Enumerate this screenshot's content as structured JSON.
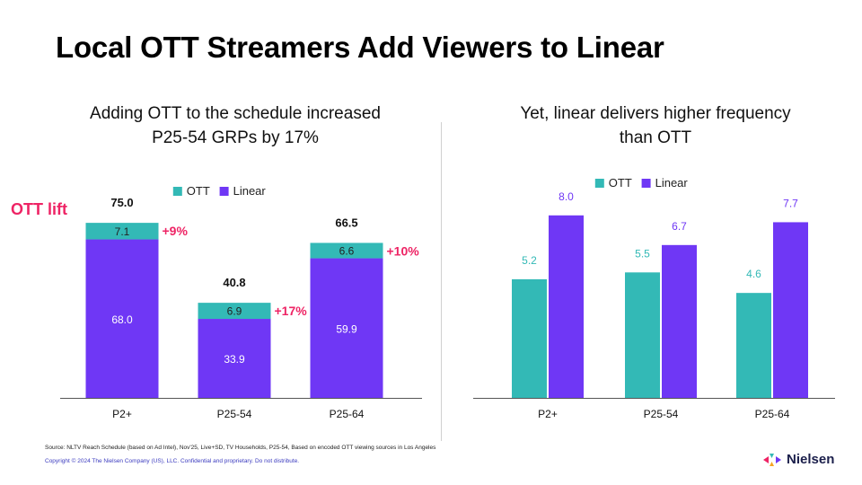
{
  "page": {
    "title": "Local OTT Streamers Add Viewers to Linear",
    "ott_lift_label": "OTT lift",
    "source": "Source: NLTV Reach Schedule (based on Ad Intel), Nov'25, Live+SD, TV Households, P25-54, Based on encoded OTT viewing sources in Los Angeles",
    "copyright": "Copyright © 2024 The Nielsen Company (US), LLC. Confidential and proprietary. Do not distribute.",
    "logo_text": "Nielsen"
  },
  "colors": {
    "ott": "#33b9b6",
    "linear": "#6f37f5",
    "lift": "#ee2465",
    "axis": "#555555"
  },
  "chart_data": [
    {
      "type": "bar",
      "stacked": true,
      "title": "Adding OTT to the schedule increased P25-54 GRPs by 17%",
      "title_lines": [
        "Adding OTT to the schedule increased",
        "P25-54 GRPs by 17%"
      ],
      "categories": [
        "P2+",
        "P25-54",
        "P25-64"
      ],
      "series": [
        {
          "name": "Linear",
          "values": [
            68.0,
            33.9,
            59.9
          ]
        },
        {
          "name": "OTT",
          "values": [
            7.1,
            6.9,
            6.6
          ]
        }
      ],
      "totals": [
        75.0,
        40.8,
        66.5
      ],
      "lift_labels": [
        "+9%",
        "+17%",
        "+10%"
      ],
      "legend": [
        "OTT",
        "Linear"
      ],
      "legend_position": "top",
      "xlabel": "",
      "ylabel": "",
      "ylim": [
        0,
        80
      ],
      "grid": false
    },
    {
      "type": "bar",
      "stacked": false,
      "title": "Yet, linear delivers higher frequency than OTT",
      "title_lines": [
        "Yet, linear delivers higher frequency",
        "than OTT"
      ],
      "categories": [
        "P2+",
        "P25-54",
        "P25-64"
      ],
      "series": [
        {
          "name": "OTT",
          "values": [
            5.2,
            5.5,
            4.6
          ]
        },
        {
          "name": "Linear",
          "values": [
            8.0,
            6.7,
            7.7
          ]
        }
      ],
      "legend": [
        "OTT",
        "Linear"
      ],
      "legend_position": "top",
      "xlabel": "",
      "ylabel": "",
      "ylim": [
        0,
        10
      ],
      "grid": false
    }
  ]
}
